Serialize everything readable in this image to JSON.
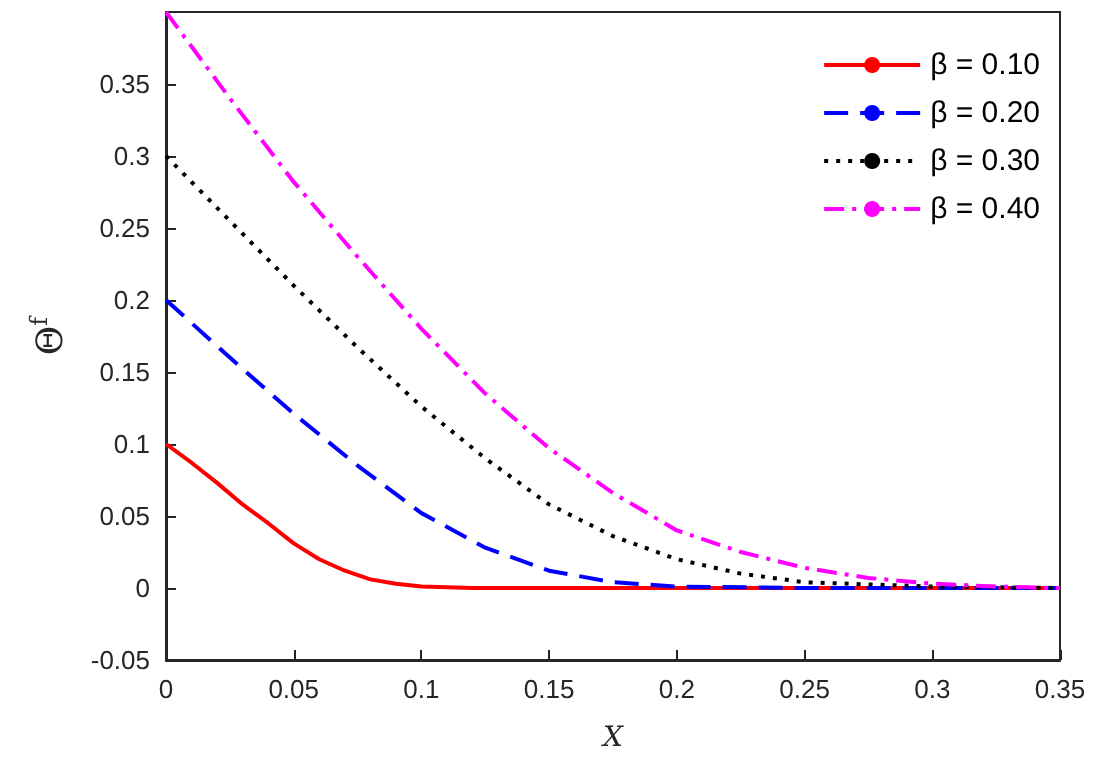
{
  "chart_data": {
    "type": "line",
    "xlabel": "X",
    "ylabel": "Θ$^{f}$",
    "xlim": [
      0,
      0.35
    ],
    "xticks": [
      0,
      0.05,
      0.1,
      0.15,
      0.2,
      0.25,
      0.3,
      0.35
    ],
    "ylim": [
      -0.05,
      0.4
    ],
    "yticks": [
      -0.05,
      0,
      0.05,
      0.1,
      0.15,
      0.2,
      0.25,
      0.3,
      0.35
    ],
    "grid": false,
    "legend": "top right",
    "marker": "none",
    "series": [
      {
        "name": "β = 0.10",
        "color": "#ff0000",
        "line_style": "solid",
        "x": [
          0,
          0.01,
          0.02,
          0.03,
          0.04,
          0.05,
          0.06,
          0.07,
          0.08,
          0.09,
          0.1,
          0.12,
          0.15,
          0.2,
          0.25,
          0.3,
          0.35
        ],
        "values": [
          0.1,
          0.087,
          0.073,
          0.058,
          0.045,
          0.031,
          0.02,
          0.012,
          0.006,
          0.003,
          0.001,
          0,
          0,
          0,
          0,
          0,
          0
        ]
      },
      {
        "name": "β = 0.20",
        "color": "#0000ff",
        "line_style": "dashed",
        "x": [
          0,
          0.025,
          0.05,
          0.075,
          0.1,
          0.125,
          0.15,
          0.175,
          0.2,
          0.25,
          0.3,
          0.35
        ],
        "values": [
          0.2,
          0.16,
          0.121,
          0.085,
          0.052,
          0.028,
          0.012,
          0.004,
          0.001,
          0,
          0,
          0
        ]
      },
      {
        "name": "β = 0.30",
        "color": "#000000",
        "line_style": "dotted",
        "x": [
          0,
          0.025,
          0.05,
          0.075,
          0.1,
          0.125,
          0.15,
          0.175,
          0.2,
          0.225,
          0.25,
          0.3,
          0.35
        ],
        "values": [
          0.3,
          0.255,
          0.21,
          0.167,
          0.126,
          0.09,
          0.058,
          0.036,
          0.02,
          0.01,
          0.004,
          0.001,
          0
        ]
      },
      {
        "name": "β = 0.40",
        "color": "#ff00ff",
        "line_style": "dashdot",
        "x": [
          0,
          0.025,
          0.05,
          0.075,
          0.1,
          0.125,
          0.15,
          0.175,
          0.2,
          0.225,
          0.25,
          0.275,
          0.3,
          0.325,
          0.35
        ],
        "values": [
          0.4,
          0.34,
          0.282,
          0.23,
          0.18,
          0.135,
          0.097,
          0.066,
          0.04,
          0.025,
          0.014,
          0.007,
          0.003,
          0.001,
          0
        ]
      }
    ]
  }
}
